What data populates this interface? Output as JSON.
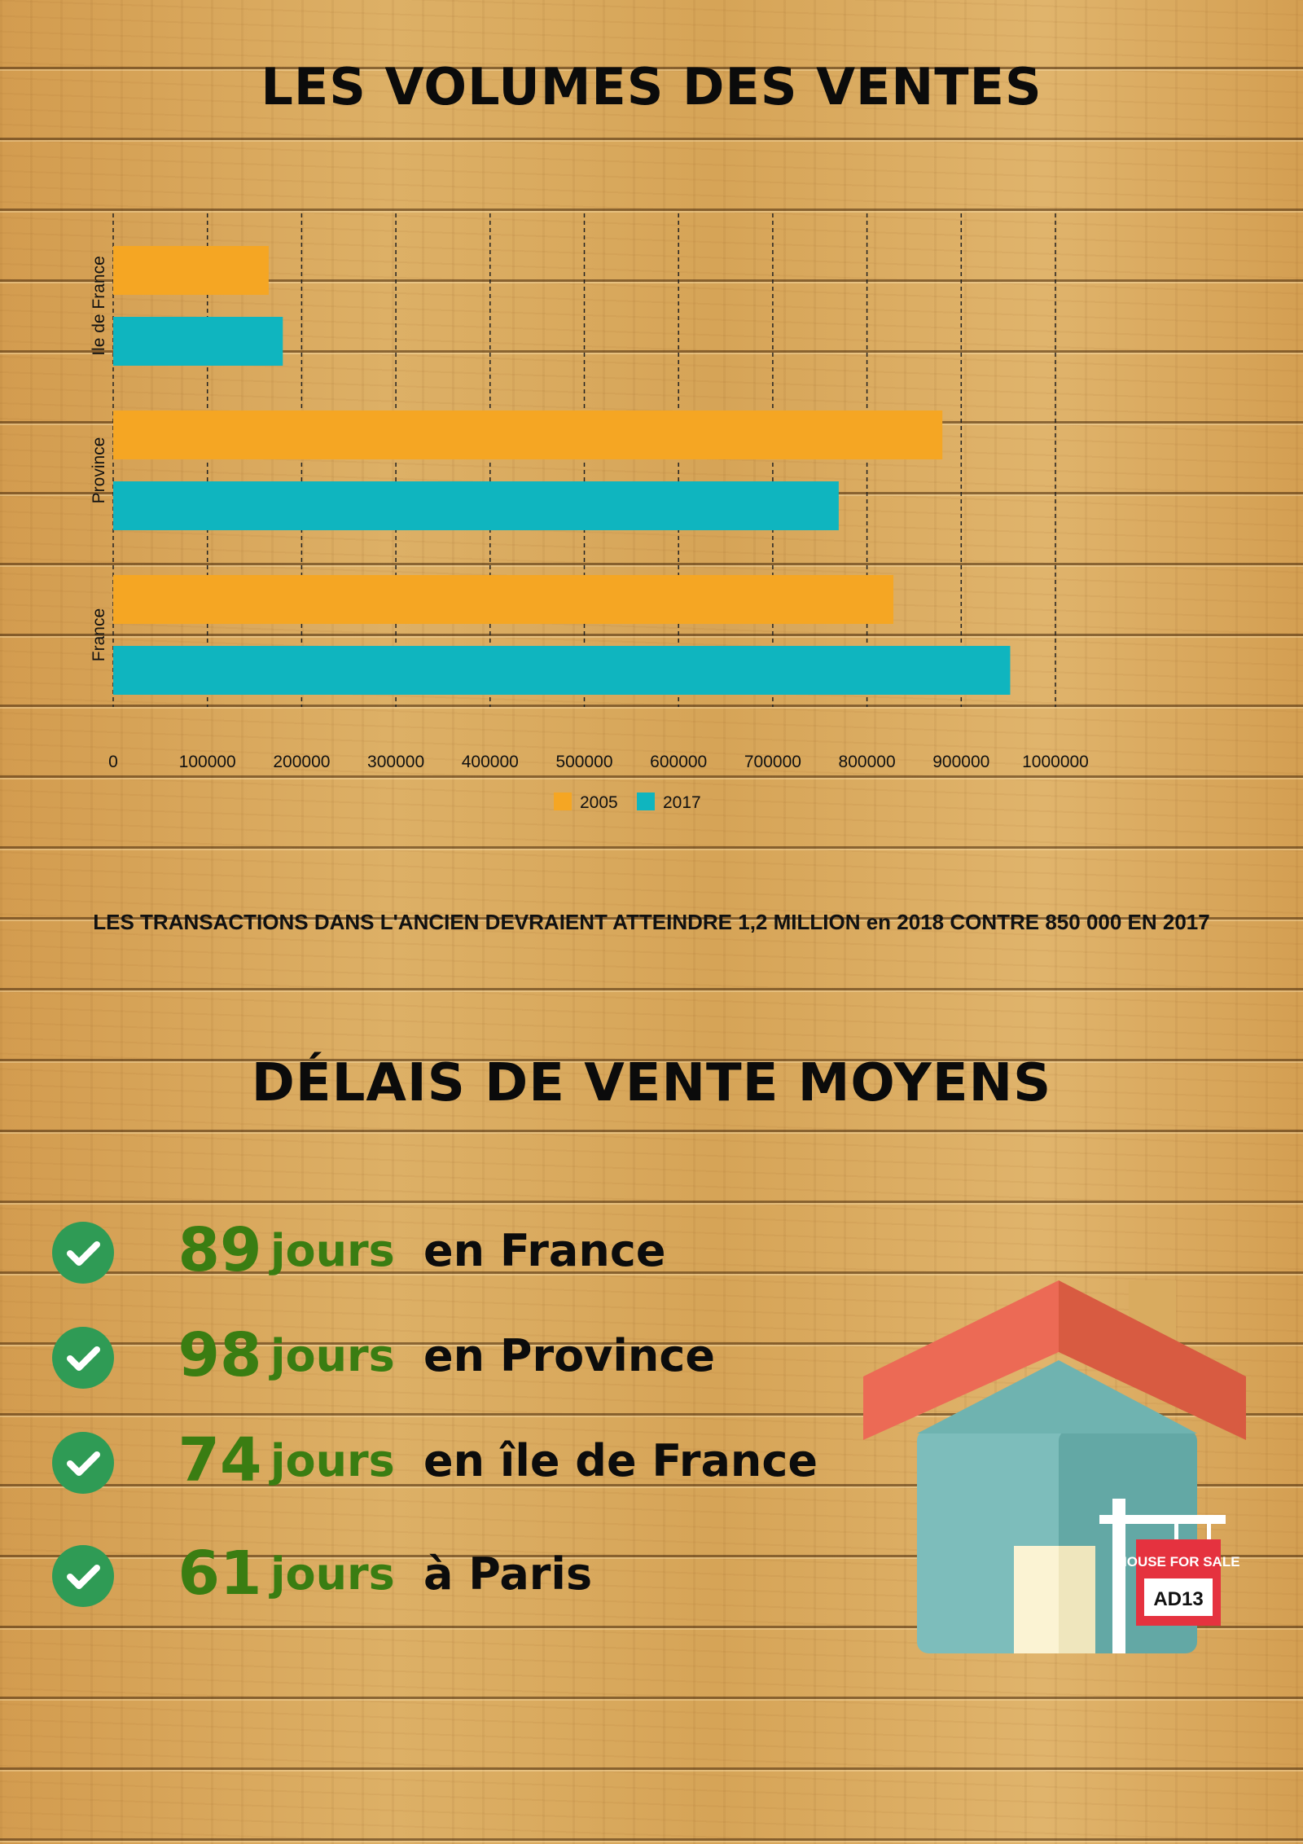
{
  "headings": {
    "volumes": "LES VOLUMES DES VENTES",
    "delais": "DÉLAIS DE VENTE MOYENS"
  },
  "note": "LES TRANSACTIONS DANS L'ANCIEN DEVRAIENT ATTEINDRE 1,2 MILLION en 2018 CONTRE 850 000 EN 2017",
  "chart_data": {
    "type": "bar",
    "orientation": "horizontal",
    "title": "",
    "xlabel": "",
    "ylabel": "",
    "categories": [
      "Ile de France",
      "Province",
      "France"
    ],
    "series": [
      {
        "name": "2005",
        "color": "#f5a623",
        "values": [
          165000,
          880000,
          828000
        ]
      },
      {
        "name": "2017",
        "color": "#0fb5bf",
        "values": [
          180000,
          770000,
          952000
        ]
      }
    ],
    "xlim": [
      0,
      1000000
    ],
    "xticks": [
      "0",
      "100000",
      "200000",
      "300000",
      "400000",
      "500000",
      "600000",
      "700000",
      "800000",
      "900000",
      "1000000"
    ],
    "grid": "vertical dashed",
    "legend": "bottom-center"
  },
  "delays": [
    {
      "days": "89",
      "unit": "jours",
      "place": "en France"
    },
    {
      "days": "98",
      "unit": "jours",
      "place": "en Province"
    },
    {
      "days": "74",
      "unit": "jours",
      "place": "en île de France"
    },
    {
      "days": "61",
      "unit": "jours",
      "place": "à Paris"
    }
  ],
  "illustration": {
    "sign_top": "HOUSE FOR SALE",
    "sign_bottom": "AD13",
    "colors": {
      "roof": "#e8604c",
      "wall": "#6fb3b0",
      "door": "#fbf3d3",
      "sign": "#e5323f"
    }
  }
}
